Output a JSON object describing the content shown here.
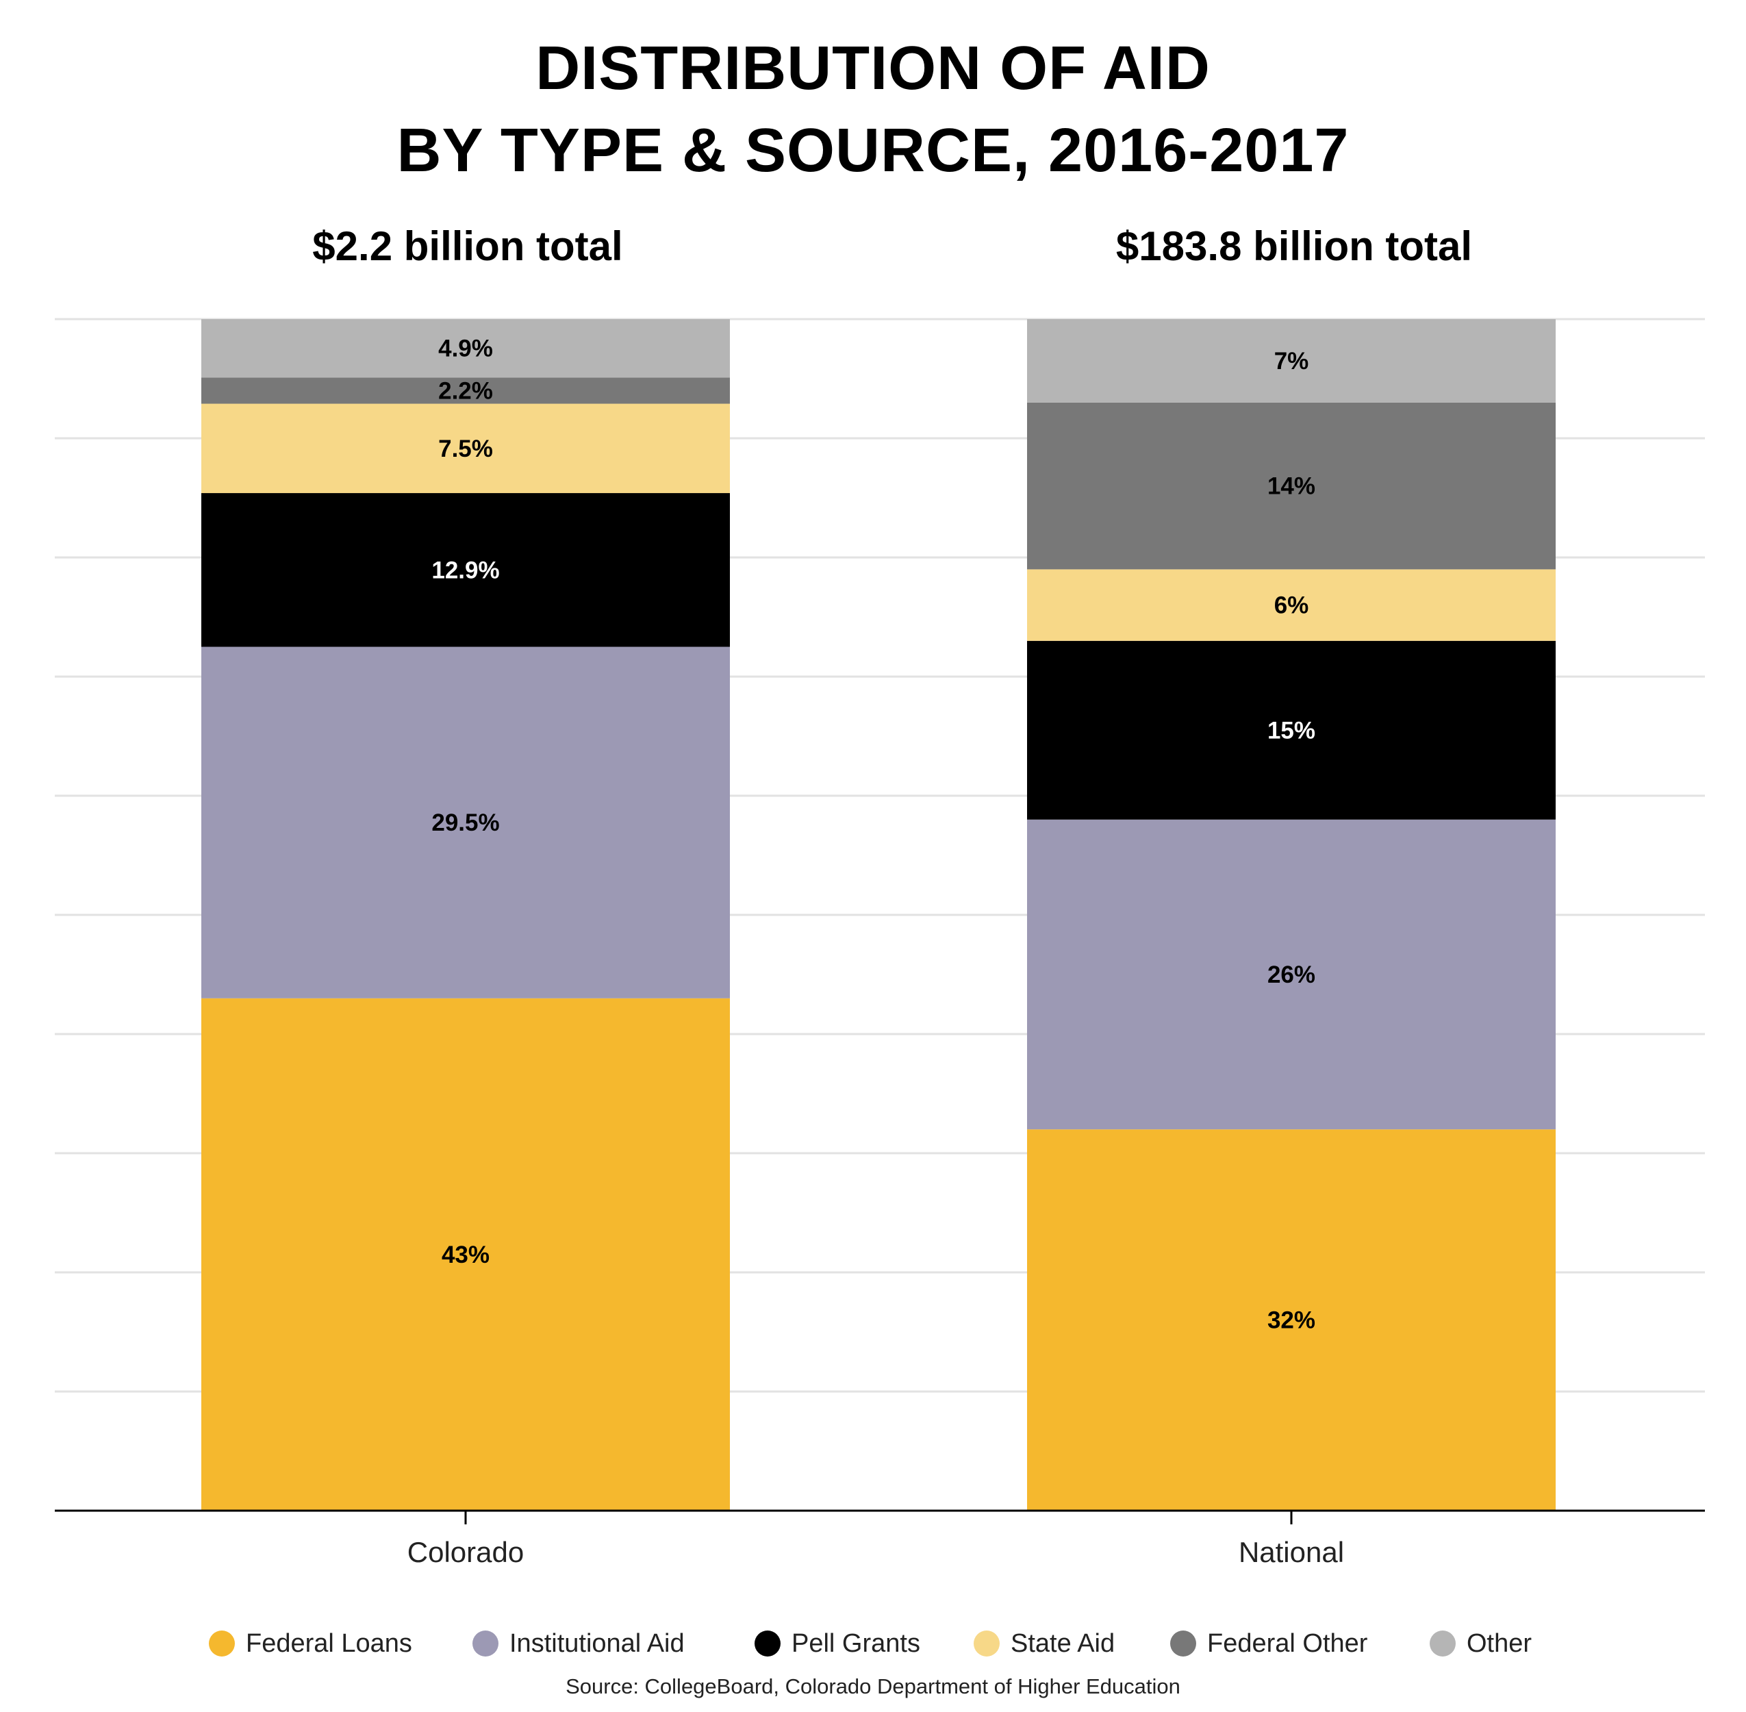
{
  "chart_data": {
    "type": "bar",
    "stacked": true,
    "title": [
      "DISTRIBUTION OF AID",
      "BY TYPE & SOURCE, 2016-2017"
    ],
    "categories": [
      "Colorado",
      "National"
    ],
    "category_subtitles": [
      "$2.2 billion total",
      "$183.8 billion total"
    ],
    "ylim": [
      0,
      100
    ],
    "grid": true,
    "legend_position": "bottom",
    "series": [
      {
        "name": "Federal Loans",
        "color": "#F5B82E",
        "values": [
          43,
          32
        ],
        "labels": [
          "43%",
          "32%"
        ],
        "label_color": "#000000"
      },
      {
        "name": "Institutional Aid",
        "color": "#9C99B4",
        "values": [
          29.5,
          26
        ],
        "labels": [
          "29.5%",
          "26%"
        ],
        "label_color": "#000000"
      },
      {
        "name": "Pell Grants",
        "color": "#000000",
        "values": [
          12.9,
          15
        ],
        "labels": [
          "12.9%",
          "15%"
        ],
        "label_color": "#FFFFFF"
      },
      {
        "name": "State Aid",
        "color": "#F7D888",
        "values": [
          7.5,
          6
        ],
        "labels": [
          "7.5%",
          "6%"
        ],
        "label_color": "#000000"
      },
      {
        "name": "Federal Other",
        "color": "#787878",
        "values": [
          2.2,
          14
        ],
        "labels": [
          "2.2%",
          "14%"
        ],
        "label_color": "#000000"
      },
      {
        "name": "Other",
        "color": "#B5B5B5",
        "values": [
          4.9,
          7
        ],
        "labels": [
          "4.9%",
          "7%"
        ],
        "label_color": "#000000"
      }
    ]
  },
  "source": "Source: CollegeBoard, Colorado Department of Higher Education"
}
